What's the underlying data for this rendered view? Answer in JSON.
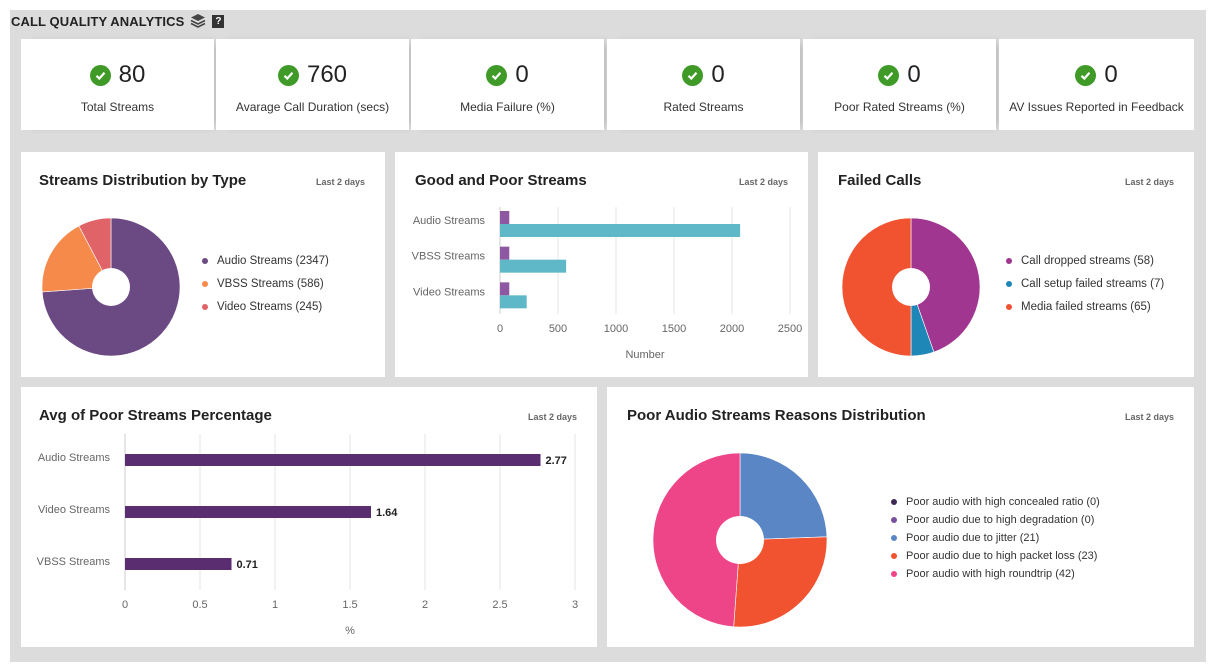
{
  "header": {
    "title": "CALL QUALITY ANALYTICS",
    "layers_icon": "layers-icon",
    "help_icon": "help-icon",
    "help_text": "?"
  },
  "kpis": [
    {
      "value": "80",
      "label": "Total Streams"
    },
    {
      "value": "760",
      "label": "Avarage Call Duration (secs)"
    },
    {
      "value": "0",
      "label": "Media Failure (%)"
    },
    {
      "value": "0",
      "label": "Rated Streams"
    },
    {
      "value": "0",
      "label": "Poor Rated Streams (%)"
    },
    {
      "value": "0",
      "label": "AV Issues Reported in Feedback"
    }
  ],
  "cards": {
    "streams_type": {
      "title": "Streams Distribution by Type",
      "range": "Last 2 days"
    },
    "good_poor": {
      "title": "Good and Poor Streams",
      "range": "Last 2 days"
    },
    "failed_calls": {
      "title": "Failed Calls",
      "range": "Last 2 days"
    },
    "avg_poor": {
      "title": "Avg of Poor Streams Percentage",
      "range": "Last 2 days"
    },
    "poor_audio": {
      "title": "Poor Audio Streams Reasons Distribution",
      "range": "Last 2 days"
    }
  },
  "chart_data": [
    {
      "type": "pie",
      "categories": [
        "Audio Streams",
        "VBSS Streams",
        "Video Streams"
      ],
      "values": [
        2347,
        586,
        245
      ],
      "legend": [
        "Audio Streams (2347)",
        "VBSS Streams (586)",
        "Video Streams (245)"
      ],
      "colors": [
        "#6b4a83",
        "#f58a4b",
        "#e06368"
      ],
      "legend_position": "right"
    },
    {
      "type": "bar",
      "orientation": "horizontal",
      "categories": [
        "Audio Streams",
        "VBSS Streams",
        "Video Streams"
      ],
      "series": [
        {
          "values": [
            80,
            80,
            80
          ],
          "color": "#8e57a2"
        },
        {
          "values": [
            2070,
            570,
            230
          ],
          "color": "#5fb8c8"
        }
      ],
      "xlabel": "Number",
      "xlim": [
        0,
        2500
      ],
      "ticks": [
        "0",
        "500",
        "1000",
        "1500",
        "2000",
        "2500"
      ],
      "tick_values": [
        0,
        500,
        1000,
        1500,
        2000,
        2500
      ],
      "grid": true
    },
    {
      "type": "pie",
      "categories": [
        "Call dropped streams",
        "Call setup failed streams",
        "Media failed streams"
      ],
      "values": [
        58,
        7,
        65
      ],
      "legend": [
        "Call dropped streams (58)",
        "Call setup failed streams (7)",
        "Media failed streams (65)"
      ],
      "colors": [
        "#a0368f",
        "#1f86b8",
        "#f15230"
      ],
      "legend_position": "right"
    },
    {
      "type": "bar",
      "orientation": "horizontal",
      "categories": [
        "Audio Streams",
        "Video Streams",
        "VBSS Streams"
      ],
      "values": [
        2.77,
        1.64,
        0.71
      ],
      "labels": [
        "2.77",
        "1.64",
        "0.71"
      ],
      "color": "#5a2c70",
      "xlabel": "%",
      "xlim": [
        0,
        3
      ],
      "ticks": [
        "0",
        "0.5",
        "1",
        "1.5",
        "2",
        "2.5",
        "3"
      ],
      "tick_values": [
        0,
        0.5,
        1,
        1.5,
        2,
        2.5,
        3
      ],
      "grid": true
    },
    {
      "type": "pie",
      "categories": [
        "Poor audio with high concealed ratio",
        "Poor audio due to high degradation",
        "Poor audio due to jitter",
        "Poor audio due to high packet loss",
        "Poor audio with high roundtrip"
      ],
      "values": [
        0,
        0,
        21,
        23,
        42
      ],
      "legend": [
        "Poor audio with high concealed ratio (0)",
        "Poor audio due to high degradation (0)",
        "Poor audio due to jitter (21)",
        "Poor audio due to high packet loss (23)",
        "Poor audio with high roundtrip (42)"
      ],
      "colors": [
        "#3d2a56",
        "#7a4f9e",
        "#5a86c6",
        "#f15230",
        "#ee4488"
      ],
      "legend_position": "right"
    }
  ]
}
